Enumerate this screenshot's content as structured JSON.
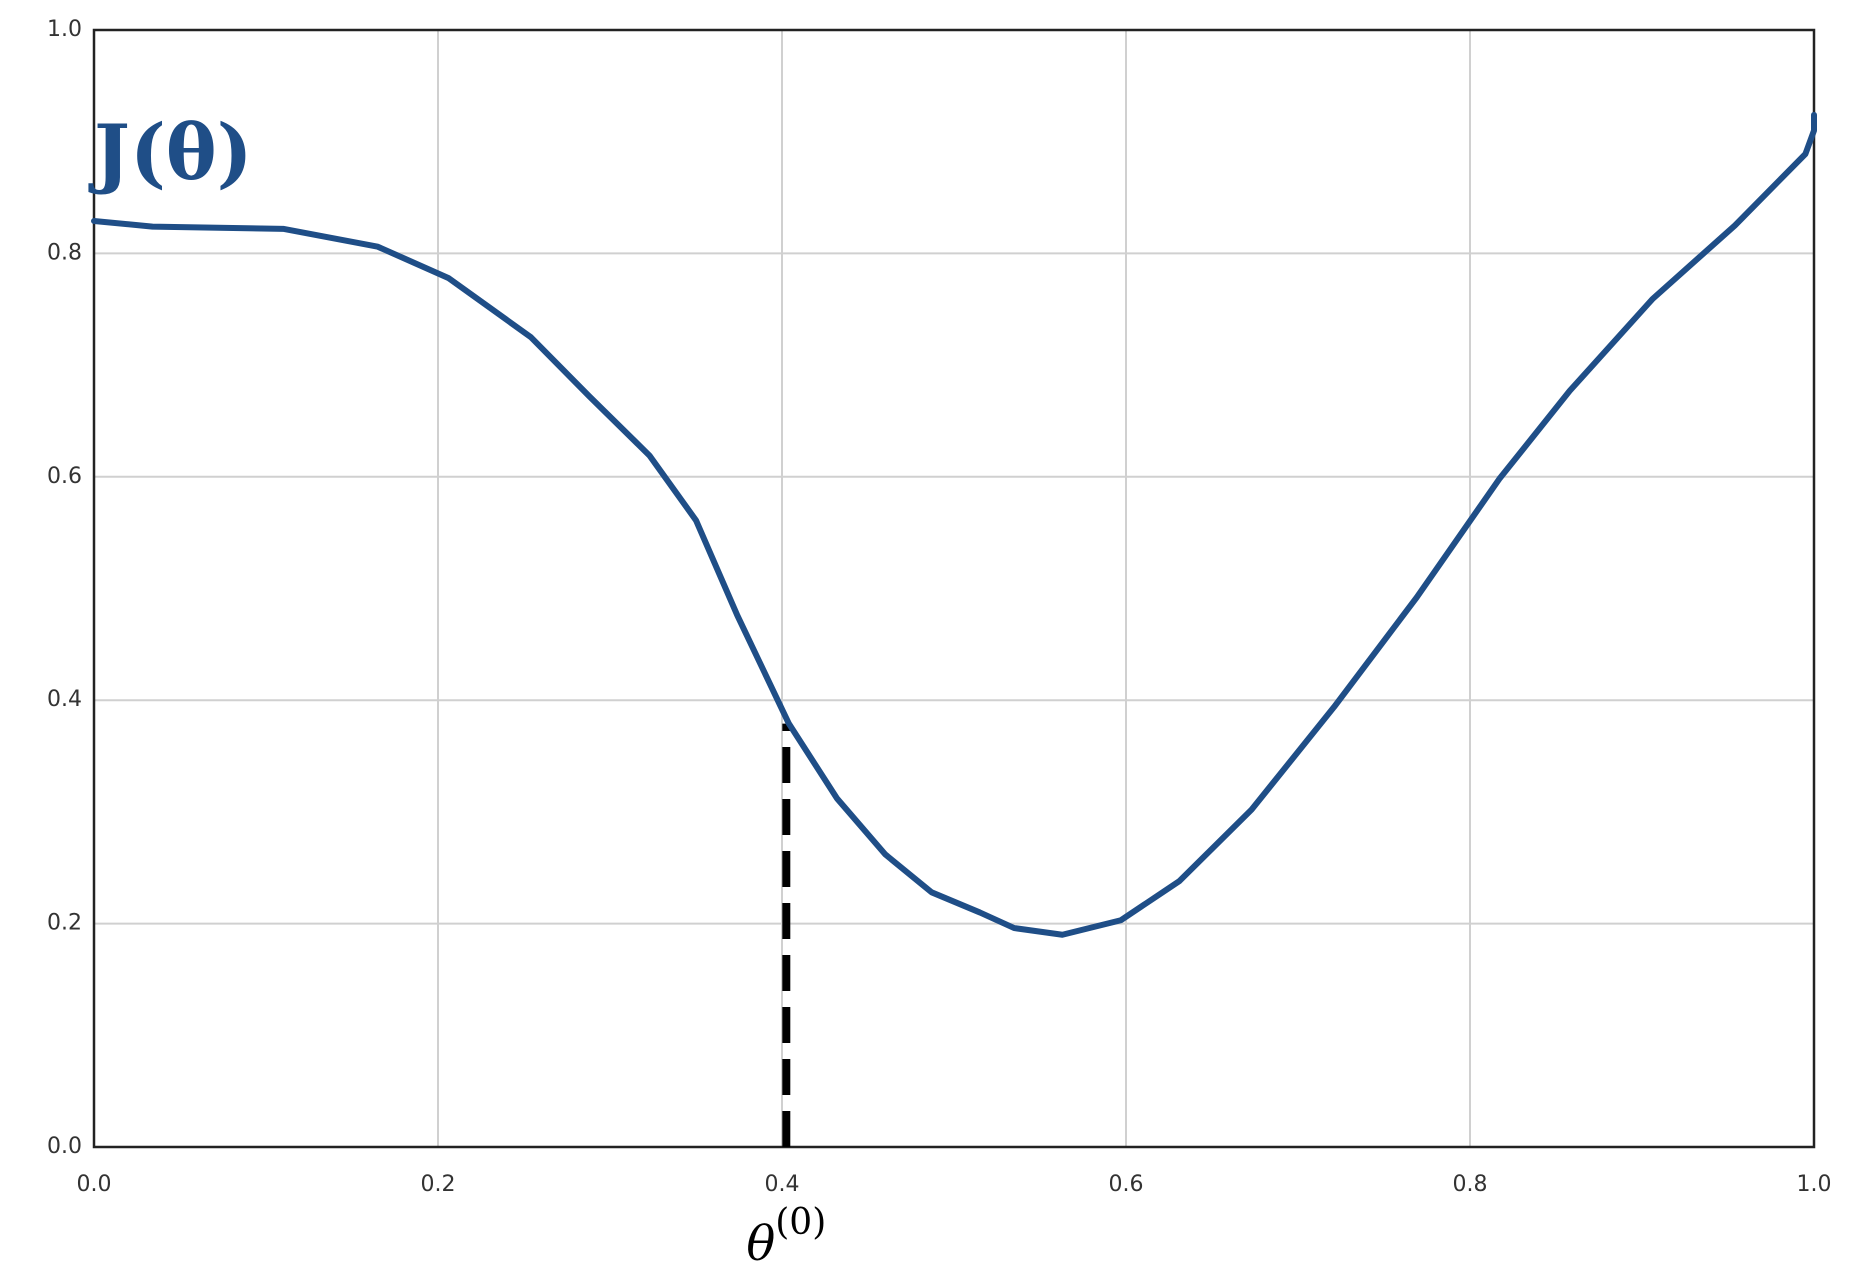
{
  "chart_data": {
    "type": "line",
    "annotations": [
      {
        "text": "J(θ)",
        "x": 0.0,
        "y": 0.885,
        "color": "#1f4e87"
      },
      {
        "text": "θ",
        "superscript": "(0)",
        "x": 0.4025
      }
    ],
    "vline": {
      "x": 0.4025,
      "y": 0.379,
      "color": "#000000",
      "dashed": true
    },
    "series": [
      {
        "name": "J(θ)",
        "color": "#1f4e87",
        "x": [
          0,
          0.034,
          0.11,
          0.165,
          0.206,
          0.254,
          0.288,
          0.323,
          0.35,
          0.374,
          0.404,
          0.432,
          0.46,
          0.487,
          0.515,
          0.535,
          0.563,
          0.597,
          0.631,
          0.673,
          0.721,
          0.769,
          0.817,
          0.858,
          0.906,
          0.954,
          0.995,
          1.0,
          1.0
        ],
        "values": [
          0.829,
          0.824,
          0.822,
          0.806,
          0.778,
          0.725,
          0.672,
          0.619,
          0.561,
          0.476,
          0.379,
          0.312,
          0.262,
          0.228,
          0.21,
          0.196,
          0.19,
          0.203,
          0.238,
          0.302,
          0.394,
          0.492,
          0.598,
          0.677,
          0.759,
          0.825,
          0.889,
          0.91,
          0.924
        ]
      }
    ],
    "xlim": [
      0,
      1
    ],
    "ylim": [
      0,
      1
    ],
    "xticks": [
      {
        "value": 0,
        "label": "0.0"
      },
      0.2,
      0.4,
      0.6,
      0.8,
      {
        "value": 1,
        "label": "1.0"
      }
    ],
    "yticks": [
      {
        "value": 0,
        "label": "0.0"
      },
      0.2,
      0.4,
      0.6,
      0.8,
      {
        "value": 1,
        "label": "1.0"
      }
    ],
    "grid": true
  }
}
